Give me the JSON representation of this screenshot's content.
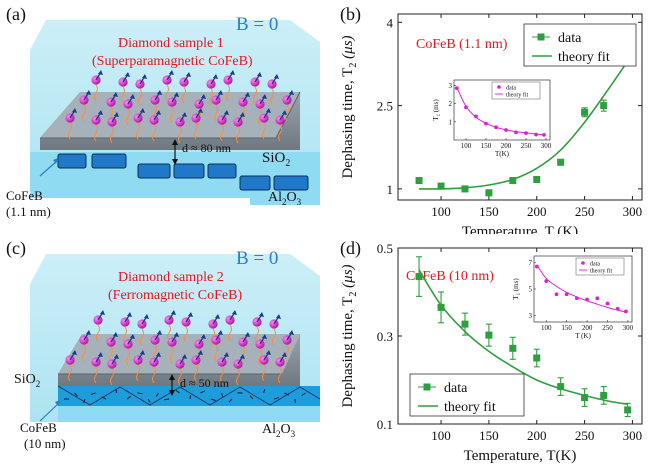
{
  "panels": {
    "a": {
      "label": "(a)",
      "field": "B = 0",
      "sample_title": "Diamond sample 1",
      "sample_subtitle": "(Superparamagnetic CoFeB)",
      "distance": "d ≈ 80 nm",
      "layer_top": "SiO",
      "layer_top_sub": "2",
      "layer_film": "CoFeB",
      "layer_film_thickness": "(1.1 nm)",
      "substrate": "Al",
      "substrate_sub1": "2",
      "substrate_mid": "O",
      "substrate_sub2": "3"
    },
    "c": {
      "label": "(c)",
      "field": "B = 0",
      "sample_title": "Diamond sample 2",
      "sample_subtitle": "(Ferromagnetic CoFeB)",
      "distance": "d ≈ 50 nm",
      "layer_top": "SiO",
      "layer_top_sub": "2",
      "layer_film": "CoFeB",
      "layer_film_thickness": "(10 nm)",
      "substrate": "Al",
      "substrate_sub1": "2",
      "substrate_mid": "O",
      "substrate_sub2": "3"
    }
  },
  "colors": {
    "data": "#2e9e3e",
    "fit": "#2e9e3e",
    "inset": "#e020d0",
    "annotation": "#e8141e",
    "field": "#2a7fc6",
    "film": "#1e9ddc"
  },
  "chart_data": [
    {
      "panel": "(b)",
      "type": "scatter",
      "annotation": "CoFeB (1.1 nm)",
      "xlabel": "Temperature, T (K)",
      "ylabel": "Dephasing time, T",
      "ylabel_sub": "2",
      "ylabel_unit": "(μs)",
      "xlim": [
        55,
        310
      ],
      "ylim": [
        0.8,
        4.15
      ],
      "xticks": [
        100,
        150,
        200,
        250,
        300
      ],
      "yticks": [
        1,
        2.5,
        4
      ],
      "legend": [
        "data",
        "theory fit"
      ],
      "legend_position": "top-right",
      "series": [
        {
          "name": "data",
          "x": [
            77,
            100,
            125,
            150,
            175,
            200,
            225,
            250,
            270,
            295
          ],
          "y": [
            1.15,
            1.05,
            1.0,
            0.93,
            1.15,
            1.17,
            1.48,
            2.38,
            2.5,
            3.75
          ],
          "err": [
            0.05,
            0.05,
            0.05,
            0.05,
            0.05,
            0.05,
            0.05,
            0.08,
            0.1,
            0.15
          ]
        },
        {
          "name": "theory fit",
          "x": [
            77,
            100,
            125,
            150,
            175,
            200,
            225,
            250,
            275,
            295
          ],
          "y": [
            1.0,
            1.0,
            1.02,
            1.07,
            1.17,
            1.37,
            1.7,
            2.2,
            2.8,
            3.3
          ]
        }
      ],
      "inset": {
        "xlabel": "T(K)",
        "ylabel": "T",
        "ylabel_sub": "1",
        "ylabel_unit": "(ms)",
        "xlim": [
          70,
          310
        ],
        "ylim": [
          0,
          3.3
        ],
        "xticks": [
          100,
          150,
          200,
          250,
          300
        ],
        "yticks": [
          1,
          2,
          3
        ],
        "legend": [
          "data",
          "theory fit"
        ],
        "series": [
          {
            "name": "data",
            "x": [
              77,
              100,
              125,
              150,
              175,
              200,
              225,
              250,
              275,
              295
            ],
            "y": [
              2.85,
              1.8,
              1.3,
              0.9,
              0.7,
              0.55,
              0.42,
              0.38,
              0.3,
              0.28
            ]
          },
          {
            "name": "theory fit",
            "x": [
              77,
              100,
              125,
              150,
              175,
              200,
              225,
              250,
              275,
              295
            ],
            "y": [
              2.9,
              1.85,
              1.25,
              0.92,
              0.7,
              0.56,
              0.46,
              0.39,
              0.33,
              0.29
            ]
          }
        ]
      }
    },
    {
      "panel": "(d)",
      "type": "scatter",
      "annotation": "CoFeB (10 nm)",
      "xlabel": "Temperature, T(K)",
      "ylabel": "Dephasing time, T",
      "ylabel_sub": "2",
      "ylabel_unit": "(μs)",
      "xlim": [
        55,
        310
      ],
      "ylim": [
        0.1,
        0.5
      ],
      "xticks": [
        100,
        150,
        200,
        250,
        300
      ],
      "yticks": [
        0.1,
        0.3,
        0.5
      ],
      "legend": [
        "data",
        "theory fit"
      ],
      "legend_position": "bottom-left",
      "series": [
        {
          "name": "data",
          "x": [
            77,
            100,
            125,
            150,
            175,
            200,
            225,
            250,
            270,
            295
          ],
          "y": [
            0.435,
            0.365,
            0.327,
            0.302,
            0.272,
            0.25,
            0.185,
            0.16,
            0.165,
            0.132
          ],
          "err": [
            0.045,
            0.035,
            0.025,
            0.025,
            0.025,
            0.02,
            0.02,
            0.02,
            0.02,
            0.015
          ]
        },
        {
          "name": "theory fit",
          "x": [
            77,
            100,
            125,
            150,
            175,
            200,
            225,
            250,
            275,
            295
          ],
          "y": [
            0.45,
            0.37,
            0.31,
            0.265,
            0.23,
            0.2,
            0.18,
            0.165,
            0.152,
            0.145
          ]
        }
      ],
      "inset": {
        "xlabel": "T (K)",
        "ylabel": "T",
        "ylabel_sub": "1",
        "ylabel_unit": "(ms)",
        "xlim": [
          70,
          310
        ],
        "ylim": [
          2.5,
          7.5
        ],
        "xticks": [
          100,
          150,
          200,
          250,
          300
        ],
        "yticks": [
          3,
          5,
          7
        ],
        "legend": [
          "data",
          "theory fit"
        ],
        "series": [
          {
            "name": "data",
            "x": [
              77,
              100,
              125,
              150,
              175,
              200,
              225,
              250,
              275,
              295
            ],
            "y": [
              6.7,
              5.6,
              4.6,
              4.6,
              4.3,
              4.2,
              4.3,
              3.9,
              3.5,
              3.3
            ]
          },
          {
            "name": "theory fit",
            "x": [
              77,
              100,
              125,
              150,
              175,
              200,
              225,
              250,
              275,
              295
            ],
            "y": [
              6.8,
              5.8,
              5.2,
              4.75,
              4.4,
              4.1,
              3.85,
              3.6,
              3.4,
              3.25
            ]
          }
        ]
      }
    }
  ]
}
